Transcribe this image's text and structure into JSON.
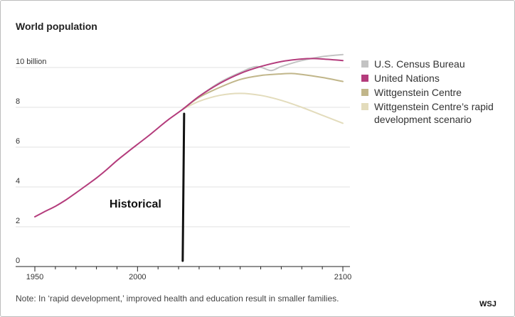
{
  "chart_data": {
    "type": "line",
    "title": "World population",
    "xlabel": "",
    "ylabel": "",
    "xlim": [
      1948,
      2101
    ],
    "ylim": [
      0,
      11.1
    ],
    "x_ticks": [
      {
        "value": 1950,
        "label": "1950"
      },
      {
        "value": 2000,
        "label": "2000"
      },
      {
        "value": 2100,
        "label": "2100"
      }
    ],
    "y_ticks": [
      {
        "value": 0,
        "label": "0"
      },
      {
        "value": 2,
        "label": "2"
      },
      {
        "value": 4,
        "label": "4"
      },
      {
        "value": 6,
        "label": "6"
      },
      {
        "value": 8,
        "label": "8"
      },
      {
        "value": 10,
        "label": "10 billion"
      }
    ],
    "grid": true,
    "legend_position": "right",
    "annotation": {
      "text": "Historical",
      "x": 2022
    },
    "series": [
      {
        "name": "Wittgenstein Centre’s rapid development scenario",
        "color": "#e3dcbc",
        "x": [
          2022,
          2030,
          2040,
          2050,
          2060,
          2070,
          2080,
          2090,
          2100
        ],
        "y": [
          7.9,
          8.3,
          8.6,
          8.7,
          8.6,
          8.35,
          8.0,
          7.6,
          7.2
        ]
      },
      {
        "name": "Wittgenstein Centre",
        "color": "#c1b68a",
        "x": [
          2022,
          2030,
          2040,
          2050,
          2060,
          2070,
          2075,
          2080,
          2090,
          2100
        ],
        "y": [
          7.9,
          8.5,
          9.0,
          9.4,
          9.6,
          9.68,
          9.7,
          9.65,
          9.5,
          9.3
        ]
      },
      {
        "name": "U.S. Census Bureau",
        "color": "#c3c3c3",
        "x": [
          2022,
          2030,
          2040,
          2050,
          2058,
          2065,
          2070,
          2080,
          2090,
          2100
        ],
        "y": [
          7.9,
          8.55,
          9.25,
          9.75,
          10.05,
          9.85,
          10.05,
          10.35,
          10.55,
          10.65
        ]
      },
      {
        "name": "United Nations",
        "color": "#b43c7c",
        "x": [
          1950,
          1955,
          1960,
          1965,
          1970,
          1975,
          1980,
          1985,
          1990,
          1995,
          2000,
          2005,
          2010,
          2015,
          2022,
          2030,
          2040,
          2050,
          2060,
          2070,
          2080,
          2086,
          2090,
          2100
        ],
        "y": [
          2.5,
          2.77,
          3.03,
          3.34,
          3.7,
          4.07,
          4.45,
          4.87,
          5.33,
          5.74,
          6.14,
          6.54,
          6.96,
          7.38,
          7.9,
          8.55,
          9.2,
          9.7,
          10.05,
          10.3,
          10.43,
          10.45,
          10.43,
          10.35
        ]
      }
    ],
    "note": "Note: In ‘rapid development,’ improved health and education result in smaller families.",
    "brand": "WSJ"
  }
}
